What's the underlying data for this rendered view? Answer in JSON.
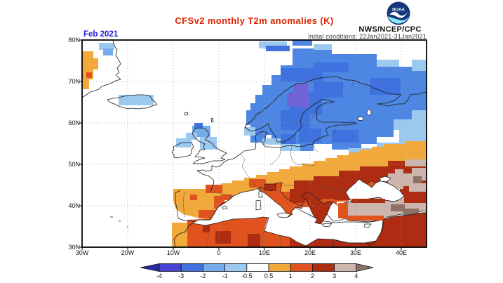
{
  "header": {
    "title": "CFSv2 monthly T2m anomalies (K)",
    "date_label": "Feb 2021",
    "initial_conditions": "Initial conditions: 22Jan2021-31Jan2021",
    "agency": "NWS/NCEP/CPC",
    "noaa_logo_text": "NOAA",
    "title_color": "#dd2200",
    "date_color": "#1f1fd4",
    "noaa_circle_color": "#15367c",
    "noaa_wave_color": "#8ce8f2"
  },
  "map": {
    "lat_ticks": [
      "80N",
      "70N",
      "60N",
      "50N",
      "40N",
      "30N"
    ],
    "lon_ticks": [
      "30W",
      "20W",
      "10W",
      "0",
      "10E",
      "20E",
      "30E",
      "40E"
    ]
  },
  "colorbar": {
    "tick_labels": [
      "-4",
      "-3",
      "-2",
      "-1",
      "-0.5",
      "0.5",
      "1",
      "2",
      "3",
      "4"
    ],
    "segment_colors": [
      "#4843d0",
      "#3f72df",
      "#74abe9",
      "#9cc9f0",
      "#ffffff",
      "#f2a93c",
      "#e0531e",
      "#ae2d12",
      "#cdb6ad"
    ],
    "arrow_left_color": "#2a2aa4",
    "arrow_right_color": "#8d7164"
  },
  "palette": {
    "white": "#ffffff",
    "arrow_cold": "#2a2aa4",
    "cold4": "#4843d0",
    "cold3": "#3f72df",
    "cold2": "#74abe9",
    "cold1": "#9cc9f0",
    "warm1": "#f2a93c",
    "warm2": "#e0531e",
    "warm3": "#ae2d12",
    "warm4": "#cdb6ad",
    "arrow_warm": "#8d7164",
    "map_blue": "#4e87e3",
    "map_purple": "#7164d8",
    "sea_white": "#ffffff"
  },
  "chart_data": {
    "type": "heatmap",
    "title": "CFSv2 monthly T2m anomalies (K)",
    "forecast_month": "Feb 2021",
    "initial_conditions_period": "22Jan2021-31Jan2021",
    "units": "K",
    "lon_range_deg": [
      -30,
      45.5
    ],
    "lat_range_deg": [
      30,
      80
    ],
    "grid": "dotted graticule every 10 degrees",
    "colorbar_levels": [
      -4,
      -3,
      -2,
      -1,
      -0.5,
      0.5,
      1,
      2,
      3,
      4
    ],
    "legend_position": "bottom",
    "region_anomalies_K": [
      {
        "region": "Scandinavia / Sweden-Finland core",
        "anomaly": "-3 to -4"
      },
      {
        "region": "Norway, Finland, NW Russia, Barents coast",
        "anomaly": "-1 to -3"
      },
      {
        "region": "Baltics, Denmark, Scotland, Iceland, NE Greenland fringe",
        "anomaly": "-0.5 to -1"
      },
      {
        "region": "Central Europe band (England to Poland)",
        "anomaly": "-0.5 to 0.5 (near neutral)"
      },
      {
        "region": "Iberia, S France, diagonal band to 45E",
        "anomaly": "0.5 to 1"
      },
      {
        "region": "Mediterranean rim, Italy, NW Africa, S Ukraine",
        "anomaly": "1 to 2"
      },
      {
        "region": "Balkans, S Russia, Libya-Egypt, Levant",
        "anomaly": "2 to 3"
      },
      {
        "region": "Central Turkey, Caucasus / Caspian area",
        "anomaly": "3 to 4"
      },
      {
        "region": "Eastern Turkey patches",
        "anomaly": "> 4"
      },
      {
        "region": "East Greenland coastal strip",
        "anomaly": "0.5 to 1"
      }
    ]
  }
}
